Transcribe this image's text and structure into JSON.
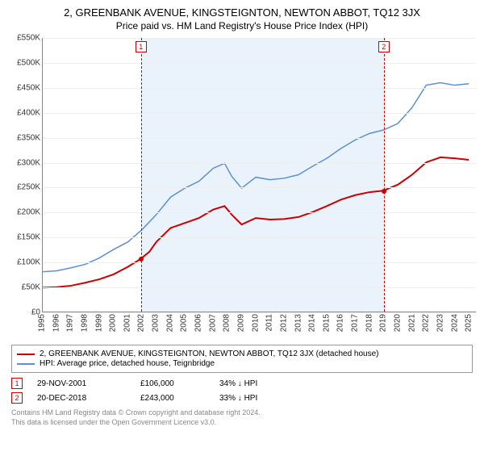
{
  "title": "2, GREENBANK AVENUE, KINGSTEIGNTON, NEWTON ABBOT, TQ12 3JX",
  "subtitle": "Price paid vs. HM Land Registry's House Price Index (HPI)",
  "chart": {
    "type": "line",
    "background_color": "#ffffff",
    "grid_color": "#eeeeee",
    "shade_color": "#eaf3fb",
    "xlim": [
      1995,
      2025.5
    ],
    "ylim": [
      0,
      550
    ],
    "y_ticks": [
      0,
      50,
      100,
      150,
      200,
      250,
      300,
      350,
      400,
      450,
      500,
      550
    ],
    "y_tick_labels": [
      "£0",
      "£50K",
      "£100K",
      "£150K",
      "£200K",
      "£250K",
      "£300K",
      "£350K",
      "£400K",
      "£450K",
      "£500K",
      "£550K"
    ],
    "x_ticks": [
      1995,
      1996,
      1997,
      1998,
      1999,
      2000,
      2001,
      2002,
      2003,
      2004,
      2005,
      2006,
      2007,
      2008,
      2009,
      2010,
      2011,
      2012,
      2013,
      2014,
      2015,
      2016,
      2017,
      2018,
      2019,
      2020,
      2021,
      2022,
      2023,
      2024,
      2025
    ],
    "title_fontsize": 13,
    "label_fontsize": 10,
    "shade_start": 2001.9,
    "shade_end": 2018.97,
    "series": [
      {
        "id": "property",
        "color": "#cc0000",
        "width": 2,
        "points": [
          [
            1995,
            48
          ],
          [
            1996,
            49
          ],
          [
            1997,
            52
          ],
          [
            1998,
            58
          ],
          [
            1999,
            65
          ],
          [
            2000,
            75
          ],
          [
            2001,
            90
          ],
          [
            2001.9,
            106
          ],
          [
            2002.5,
            120
          ],
          [
            2003,
            140
          ],
          [
            2004,
            168
          ],
          [
            2005,
            178
          ],
          [
            2006,
            188
          ],
          [
            2007,
            205
          ],
          [
            2007.8,
            212
          ],
          [
            2008.3,
            195
          ],
          [
            2009,
            175
          ],
          [
            2010,
            188
          ],
          [
            2011,
            185
          ],
          [
            2012,
            186
          ],
          [
            2013,
            190
          ],
          [
            2014,
            200
          ],
          [
            2015,
            212
          ],
          [
            2016,
            225
          ],
          [
            2017,
            234
          ],
          [
            2018,
            240
          ],
          [
            2018.97,
            243
          ],
          [
            2020,
            255
          ],
          [
            2021,
            275
          ],
          [
            2022,
            300
          ],
          [
            2023,
            310
          ],
          [
            2024,
            308
          ],
          [
            2025,
            305
          ]
        ]
      },
      {
        "id": "hpi",
        "color": "#5b8fd6",
        "width": 1.5,
        "points": [
          [
            1995,
            80
          ],
          [
            1996,
            82
          ],
          [
            1997,
            88
          ],
          [
            1998,
            95
          ],
          [
            1999,
            108
          ],
          [
            2000,
            125
          ],
          [
            2001,
            140
          ],
          [
            2002,
            165
          ],
          [
            2003,
            195
          ],
          [
            2004,
            230
          ],
          [
            2005,
            248
          ],
          [
            2006,
            262
          ],
          [
            2007,
            288
          ],
          [
            2007.8,
            298
          ],
          [
            2008.3,
            272
          ],
          [
            2009,
            248
          ],
          [
            2010,
            270
          ],
          [
            2011,
            265
          ],
          [
            2012,
            268
          ],
          [
            2013,
            275
          ],
          [
            2014,
            292
          ],
          [
            2015,
            308
          ],
          [
            2016,
            328
          ],
          [
            2017,
            345
          ],
          [
            2018,
            358
          ],
          [
            2019,
            365
          ],
          [
            2020,
            378
          ],
          [
            2021,
            410
          ],
          [
            2022,
            455
          ],
          [
            2023,
            460
          ],
          [
            2024,
            455
          ],
          [
            2025,
            458
          ]
        ]
      }
    ],
    "markers": [
      {
        "n": "1",
        "x": 2001.9,
        "y": 106,
        "color": "#cc0000"
      },
      {
        "n": "2",
        "x": 2018.97,
        "y": 243,
        "color": "#cc0000"
      }
    ]
  },
  "legend": {
    "items": [
      {
        "color": "#cc0000",
        "label": "2, GREENBANK AVENUE, KINGSTEIGNTON, NEWTON ABBOT, TQ12 3JX (detached house)"
      },
      {
        "color": "#5b8fd6",
        "label": "HPI: Average price, detached house, Teignbridge"
      }
    ]
  },
  "events": [
    {
      "n": "1",
      "color": "#cc0000",
      "date": "29-NOV-2001",
      "price": "£106,000",
      "delta": "34% ↓ HPI"
    },
    {
      "n": "2",
      "color": "#cc0000",
      "date": "20-DEC-2018",
      "price": "£243,000",
      "delta": "33% ↓ HPI"
    }
  ],
  "footer": {
    "line1": "Contains HM Land Registry data © Crown copyright and database right 2024.",
    "line2": "This data is licensed under the Open Government Licence v3.0."
  }
}
